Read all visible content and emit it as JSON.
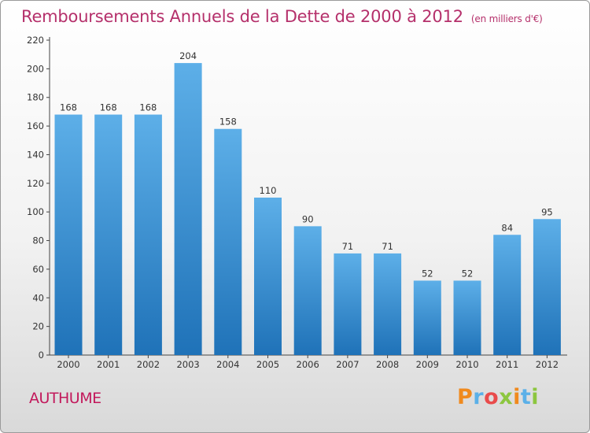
{
  "chart_title": "Remboursements Annuels de la Dette de 2000 à 2012",
  "chart_unit": "(en milliers d'€)",
  "commune": "AUTHUME",
  "brand": {
    "text": "Proxiti",
    "colors": [
      "#f08a1e",
      "#5bb0e8",
      "#e94b4b",
      "#8cc63f",
      "#f08a1e",
      "#5bb0e8",
      "#8cc63f"
    ]
  },
  "colors": {
    "bar_top": "#5dafe8",
    "bar_bottom": "#1f72b8",
    "accent": "#b5306b"
  },
  "chart_data": {
    "type": "bar",
    "categories": [
      "2000",
      "2001",
      "2002",
      "2003",
      "2004",
      "2005",
      "2006",
      "2007",
      "2008",
      "2009",
      "2010",
      "2011",
      "2012"
    ],
    "values": [
      168,
      168,
      168,
      204,
      158,
      110,
      90,
      71,
      71,
      52,
      52,
      84,
      95
    ],
    "title": "Remboursements Annuels de la Dette de 2000 à 2012",
    "subtitle": "(en milliers d'€)",
    "xlabel": "",
    "ylabel": "",
    "ylim": [
      0,
      220
    ],
    "yticks": [
      0,
      20,
      40,
      60,
      80,
      100,
      120,
      140,
      160,
      180,
      200,
      220
    ],
    "grid": false,
    "data_labels": true
  }
}
